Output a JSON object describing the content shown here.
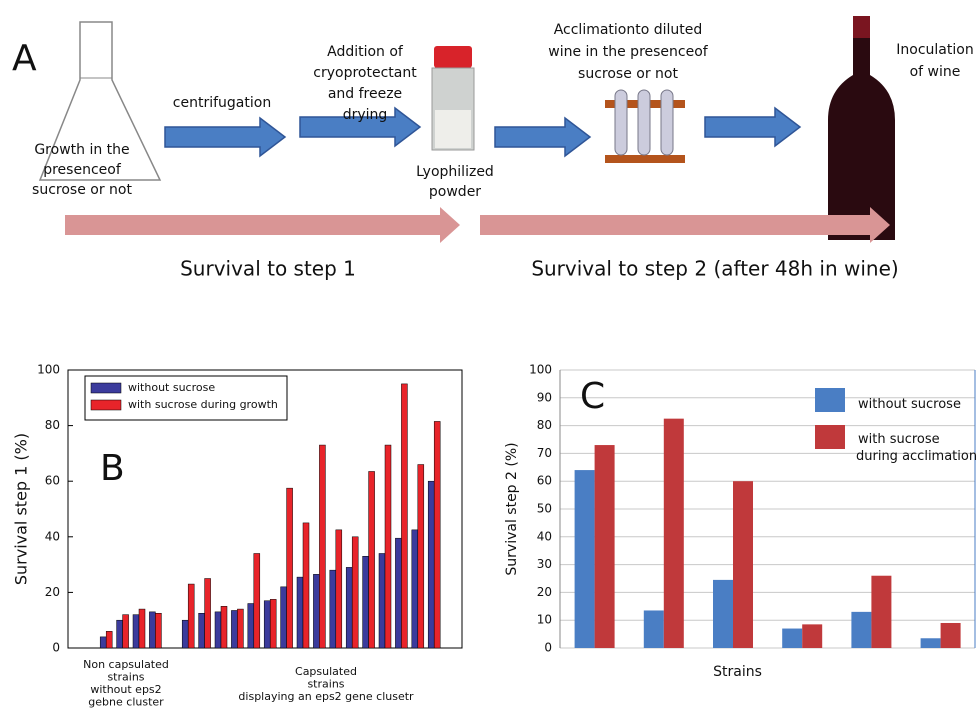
{
  "panel_a": {
    "label": "A",
    "growth": [
      "Growth in the",
      "presenceof",
      "sucrose or not"
    ],
    "centrifugation": "centrifugation",
    "freeze_drying": [
      "Addition of",
      "cryoprotectant",
      "and freeze",
      "drying"
    ],
    "powder": [
      "Lyophilized",
      "powder"
    ],
    "acclimation": [
      "Acclimationto diluted",
      "wine in the presenceof",
      "sucrose or not"
    ],
    "inoculation": [
      "Inoculation",
      "of wine"
    ],
    "survival_1": "Survival to step 1",
    "survival_2": "Survival to step 2 (after 48h in wine)"
  },
  "chart_data": [
    {
      "type": "bar",
      "panel_label": "B",
      "y_label": "Survival step 1 (%)",
      "categories": [
        null,
        null,
        null,
        null,
        null,
        null,
        null,
        null,
        null,
        null,
        null,
        null,
        null,
        null,
        null,
        null,
        null,
        null,
        null,
        null,
        null
      ],
      "series": [
        {
          "name": "without sucrose",
          "color": "#3b3b9c",
          "values": [
            4,
            10,
            12,
            13,
            null,
            10,
            12.5,
            13,
            13.5,
            16,
            17,
            22,
            25.5,
            26.5,
            28,
            29,
            33,
            34,
            39.5,
            42.5,
            60
          ]
        },
        {
          "name": "with sucrose during growth",
          "color": "#e8242a",
          "values": [
            6,
            12,
            14,
            12.5,
            null,
            23,
            25,
            15,
            14,
            34,
            17.5,
            57.5,
            45,
            73,
            42.5,
            40,
            63.5,
            73,
            95,
            66,
            81.5
          ]
        }
      ],
      "ylim": [
        0,
        100
      ],
      "yticks": [
        0,
        20,
        40,
        60,
        80,
        100
      ],
      "grid": false,
      "legend": "upper left",
      "group_labels": [
        [
          "Non capsulated",
          "strains",
          "without eps2",
          "gebne cluster"
        ],
        [
          "Capsulated",
          "strains",
          "displaying an eps2 gene clusetr"
        ]
      ]
    },
    {
      "type": "bar",
      "panel_label": "C",
      "y_label": "Survival step 2 (%)",
      "x_label": "Strains",
      "categories": [
        null,
        null,
        null,
        null,
        null,
        null
      ],
      "series": [
        {
          "name": "without sucrose",
          "color": "#4a7ec4",
          "values": [
            64,
            13.5,
            24.5,
            7,
            13,
            3.5
          ]
        },
        {
          "name": "with sucrose during acclimation",
          "color": "#c0393b",
          "values": [
            73,
            82.5,
            60,
            8.5,
            26,
            9
          ]
        }
      ],
      "ylim": [
        0,
        100
      ],
      "yticks": [
        0,
        10,
        20,
        30,
        40,
        50,
        60,
        70,
        80,
        90,
        100
      ],
      "grid": true,
      "legend": "upper right"
    }
  ]
}
